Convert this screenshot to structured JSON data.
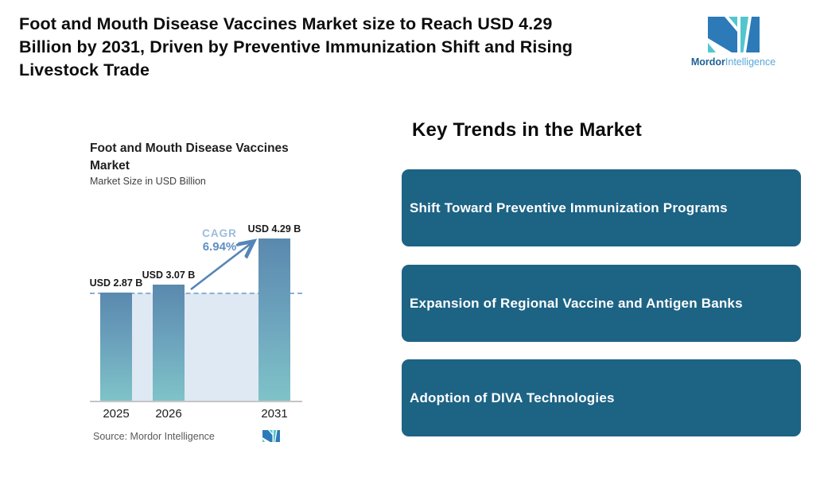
{
  "header": {
    "title_lines": [
      "Foot and Mouth Disease Vaccines Market size to Reach USD 4.29",
      "Billion by 2031, Driven by Preventive Immunization Shift and Rising",
      "Livestock Trade"
    ],
    "logo": {
      "brand_bold": "Mordor",
      "brand_light": "Intelligence",
      "blue": "#2d7ab8",
      "teal": "#53c6cd"
    }
  },
  "chart": {
    "title_line1": "Foot and Mouth Disease Vaccines",
    "title_line2": "Market",
    "subtitle": "Market Size in USD Billion",
    "cagr_label": "CAGR",
    "cagr_value": "6.94%",
    "source_label": "Source: Mordor Intelligence"
  },
  "chart_data": {
    "type": "bar",
    "title": "Foot and Mouth Disease Vaccines Market",
    "subtitle": "Market Size in USD Billion",
    "categories": [
      "2025",
      "2026",
      "2031"
    ],
    "values": [
      2.87,
      3.07,
      4.29
    ],
    "value_labels": [
      "USD 2.87 B",
      "USD 3.07 B",
      "USD 4.29 B"
    ],
    "unit": "USD Billion",
    "cagr_percent": 6.94,
    "ylim": [
      0,
      4.5
    ],
    "reference_line": 2.87,
    "grid": false,
    "legend": "none",
    "bar_color_top": "#5a89ae",
    "bar_color_bottom": "#7fc3c8",
    "reference_line_color": "#8ab0d4",
    "shade_color": "#dfe9f3"
  },
  "trends": {
    "heading": "Key Trends in the Market",
    "box_color": "#1d6384",
    "items": [
      {
        "label": "Shift Toward Preventive Immunization Programs"
      },
      {
        "label": "Expansion of Regional Vaccine and Antigen Banks"
      },
      {
        "label": "Adoption of DIVA Technologies"
      }
    ]
  }
}
